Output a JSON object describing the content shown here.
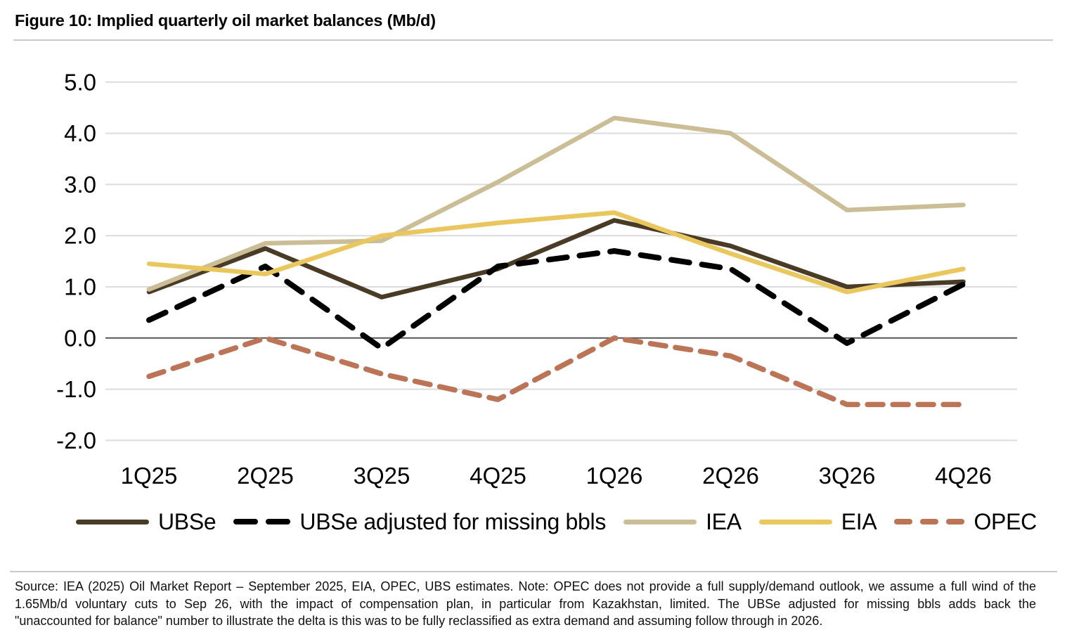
{
  "figure": {
    "title": "Figure 10: Implied quarterly oil market balances (Mb/d)"
  },
  "chart_data": {
    "type": "line",
    "title": "Implied quarterly oil market balances (Mb/d)",
    "categories": [
      "1Q25",
      "2Q25",
      "3Q25",
      "4Q25",
      "1Q26",
      "2Q26",
      "3Q26",
      "4Q26"
    ],
    "series": [
      {
        "name": "UBSe",
        "color": "#493b26",
        "line_style": "solid",
        "values": [
          0.9,
          1.75,
          0.8,
          1.35,
          2.3,
          1.8,
          1.0,
          1.1
        ]
      },
      {
        "name": "UBSe adjusted for missing bbls",
        "color": "#000000",
        "line_style": "dashed",
        "values": [
          0.35,
          1.4,
          -0.2,
          1.4,
          1.7,
          1.35,
          -0.1,
          1.05
        ]
      },
      {
        "name": "IEA",
        "color": "#cbbd96",
        "line_style": "solid",
        "values": [
          0.95,
          1.85,
          1.9,
          3.05,
          4.3,
          4.0,
          2.5,
          2.6
        ]
      },
      {
        "name": "EIA",
        "color": "#eac75e",
        "line_style": "solid",
        "values": [
          1.45,
          1.25,
          2.0,
          2.25,
          2.45,
          1.65,
          0.9,
          1.35
        ]
      },
      {
        "name": "OPEC",
        "color": "#bc7456",
        "line_style": "dashed",
        "values": [
          -0.75,
          0.0,
          -0.7,
          -1.2,
          0.0,
          -0.35,
          -1.3,
          -1.3
        ]
      }
    ],
    "ylim": [
      -2.0,
      5.0
    ],
    "y_ticks": [
      "5.0",
      "4.0",
      "3.0",
      "2.0",
      "1.0",
      "0.0",
      "-1.0",
      "-2.0"
    ],
    "grid": true,
    "grid_color": "#dcdcdc",
    "zero_line_color": "#555555",
    "legend_position": "bottom"
  },
  "footer": {
    "lines": [
      "Source: IEA (2025) Oil Market Report – September 2025, EIA, OPEC, UBS estimates. Note: OPEC does not provide a full supply/demand outlook, we assume a full wind of the",
      "1.65Mb/d voluntary cuts to Sep 26, with the impact of compensation plan, in particular from Kazakhstan, limited. The UBSe adjusted for missing bbls adds back the",
      "\"unaccounted for balance\" number to illustrate the delta is this was to be fully reclassified as extra demand and assuming follow through in 2026."
    ]
  }
}
